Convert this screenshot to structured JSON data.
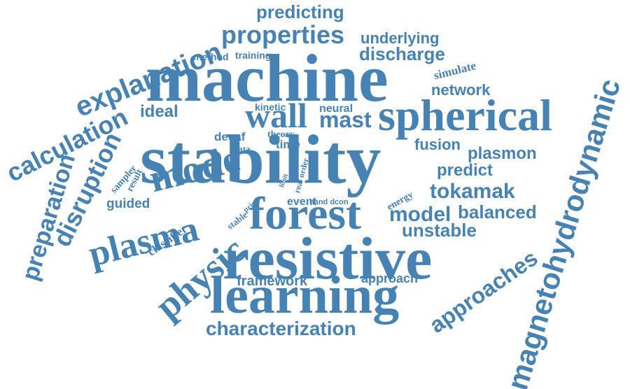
{
  "word_color": "#4682b4",
  "background": "#ffffff",
  "words": {
    "stability": "stability",
    "machine": "machine",
    "resistive": "resistive",
    "learning": "learning",
    "spherical": "spherical",
    "forest": "forest",
    "wall": "wall",
    "mode": "mode",
    "plasma": "plasma",
    "physic": "physic",
    "magnetohydrodynamic": "magnetohydrodynamic",
    "explanation": "explanation",
    "calculation": "calculation",
    "disruption": "disruption",
    "preparation": "preparation",
    "properties": "properties",
    "predicting": "predicting",
    "underlying": "underlying",
    "discharge": "discharge",
    "characterization": "characterization",
    "approaches": "approaches",
    "tokamak": "tokamak",
    "balanced": "balanced",
    "unstable": "unstable",
    "model": "model",
    "mast": "mast",
    "ideal": "ideal",
    "network": "network",
    "simulate": "simulate",
    "fusion": "fusion",
    "plasmon": "plasmon",
    "predict": "predict",
    "framework": "framework",
    "approach": "approach",
    "method": "method",
    "training": "training",
    "kinetic": "kinetic",
    "neural": "neural",
    "decaf": "decaf",
    "theory": "theory",
    "time": "time",
    "data": "data",
    "tree": "tree",
    "limit": "limit",
    "real_order": "real order",
    "event": "event",
    "hand_dcon": "hand dcon",
    "energy": "energy",
    "sampler": "sampler",
    "result": "result",
    "guided": "guided",
    "classifier": "classifier",
    "stable": "stable",
    "prior": "prior"
  }
}
